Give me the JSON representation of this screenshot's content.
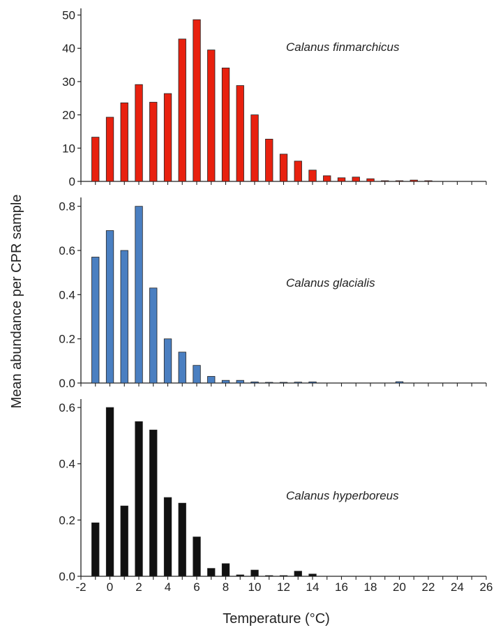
{
  "chart_data": {
    "type": "bar",
    "xlabel": "Temperature (°C)",
    "ylabel": "Mean abundance per CPR sample",
    "x_ticks": [
      -2,
      0,
      2,
      4,
      6,
      8,
      10,
      12,
      14,
      16,
      18,
      20,
      22,
      24,
      26
    ],
    "xlim": [
      -2,
      26
    ],
    "panels": [
      {
        "series_name": "Calanus finmarchicus",
        "color": "#e8210f",
        "ylim": [
          0,
          52
        ],
        "y_ticks": [
          0,
          10,
          20,
          30,
          40,
          50
        ],
        "x": [
          -1,
          0,
          1,
          2,
          3,
          4,
          5,
          6,
          7,
          8,
          9,
          10,
          11,
          12,
          13,
          14,
          15,
          16,
          17,
          18,
          19,
          20,
          21,
          22
        ],
        "values": [
          13.3,
          19.3,
          23.6,
          29.1,
          23.8,
          26.4,
          42.8,
          48.6,
          39.5,
          34.1,
          28.8,
          20.0,
          12.7,
          8.2,
          6.1,
          3.4,
          1.7,
          1.1,
          1.3,
          0.8,
          0.2,
          0.2,
          0.4,
          0.2
        ]
      },
      {
        "series_name": "Calanus glacialis",
        "color": "#4a7fc1",
        "ylim": [
          0,
          0.84
        ],
        "y_ticks": [
          "0.0",
          "0.2",
          "0.4",
          "0.6",
          "0.8"
        ],
        "x": [
          -1,
          0,
          1,
          2,
          3,
          4,
          5,
          6,
          7,
          8,
          9,
          10,
          11,
          12,
          13,
          14,
          20
        ],
        "values": [
          0.57,
          0.69,
          0.6,
          0.8,
          0.43,
          0.2,
          0.14,
          0.08,
          0.03,
          0.012,
          0.012,
          0.005,
          0.003,
          0.002,
          0.004,
          0.005,
          0.006
        ]
      },
      {
        "series_name": "Calanus hyperboreus",
        "color": "#111111",
        "ylim": [
          0,
          0.63
        ],
        "y_ticks": [
          "0.0",
          "0.2",
          "0.4",
          "0.6"
        ],
        "x": [
          -1,
          0,
          1,
          2,
          3,
          4,
          5,
          6,
          7,
          8,
          9,
          10,
          11,
          12,
          13,
          14
        ],
        "values": [
          0.19,
          0.6,
          0.25,
          0.55,
          0.52,
          0.28,
          0.26,
          0.14,
          0.028,
          0.045,
          0.005,
          0.022,
          0.002,
          0.001,
          0.018,
          0.008
        ]
      }
    ]
  }
}
